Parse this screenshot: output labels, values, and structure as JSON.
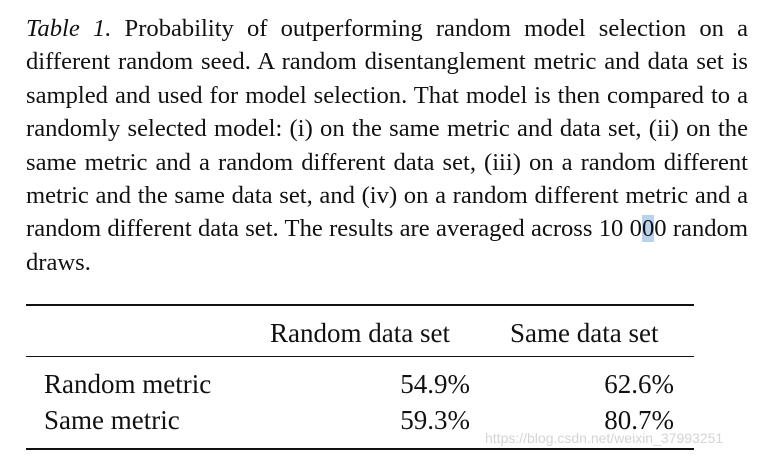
{
  "caption": {
    "label": "Table 1.",
    "text_before": "Probability of outperforming random model selection on a different random seed. A random disentanglement metric and data set is sampled and used for model selection. That model is then compared to a randomly selected model: (i) on the same metric and data set, (ii) on the same metric and a random different data set, (iii) on a random different metric and the same data set, and (iv) on a random different metric and a random different data set. The results are averaged across 10 0",
    "highlighted": "0",
    "text_after": "0 random draws."
  },
  "table": {
    "columns": [
      "Random data set",
      "Same data set"
    ],
    "rows": [
      {
        "label": "Random metric",
        "values": [
          "54.9%",
          "62.6%"
        ]
      },
      {
        "label": "Same metric",
        "values": [
          "59.3%",
          "80.7%"
        ]
      }
    ]
  },
  "watermark": "https://blog.csdn.net/weixin_37993251"
}
